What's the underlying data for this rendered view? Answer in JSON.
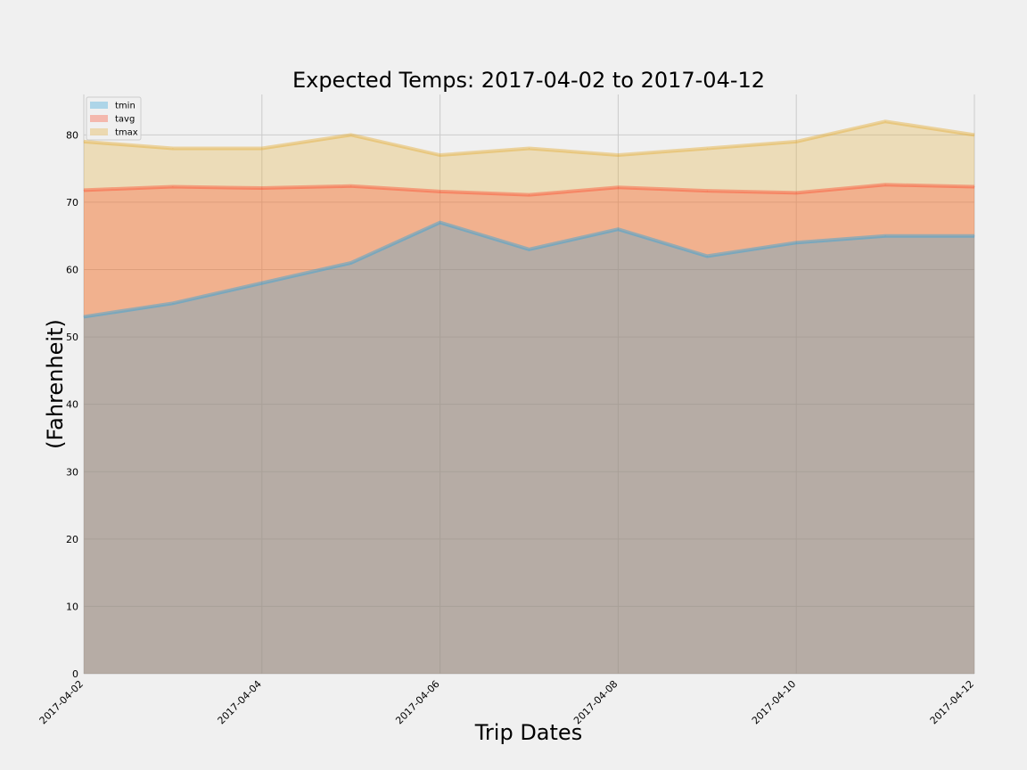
{
  "chart_data": {
    "type": "area",
    "title": "Expected Temps: 2017-04-02 to 2017-04-12",
    "xlabel": "Trip Dates",
    "ylabel": "(Fahrenheit)",
    "x": [
      "2017-04-02",
      "2017-04-03",
      "2017-04-04",
      "2017-04-05",
      "2017-04-06",
      "2017-04-07",
      "2017-04-08",
      "2017-04-09",
      "2017-04-10",
      "2017-04-11",
      "2017-04-12"
    ],
    "x_tick_labels": [
      "2017-04-02",
      "2017-04-04",
      "2017-04-06",
      "2017-04-08",
      "2017-04-10",
      "2017-04-12"
    ],
    "y_ticks": [
      0,
      10,
      20,
      30,
      40,
      50,
      60,
      70,
      80
    ],
    "ylim": [
      0,
      86
    ],
    "grid": true,
    "stacked": false,
    "legend_position": "top-left",
    "series": [
      {
        "name": "tmin",
        "color": "#30a2da",
        "values": [
          53,
          55,
          58,
          61,
          67,
          63,
          66,
          62,
          64,
          65,
          65
        ]
      },
      {
        "name": "tavg",
        "color": "#fc4f30",
        "values": [
          71.8,
          72.3,
          72.1,
          72.4,
          71.6,
          71.1,
          72.2,
          71.7,
          71.4,
          72.6,
          72.3
        ]
      },
      {
        "name": "tmax",
        "color": "#e5ae38",
        "values": [
          79,
          78,
          78,
          80,
          77,
          78,
          77,
          78,
          79,
          82,
          80
        ]
      }
    ]
  }
}
